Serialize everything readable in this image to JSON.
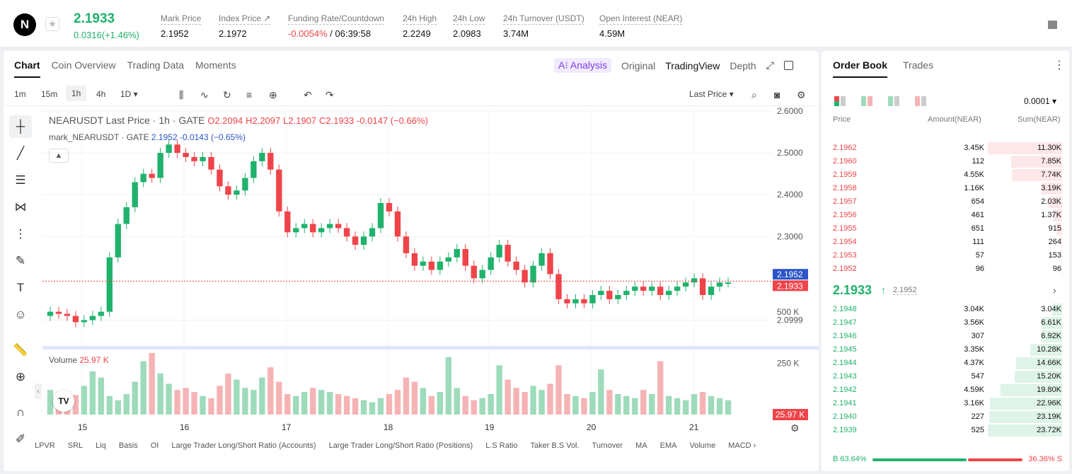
{
  "header": {
    "logo": "N",
    "price": "2.1933",
    "change": "0.0316(+1.46%)",
    "stats": [
      {
        "label": "Mark Price",
        "value": "2.1952"
      },
      {
        "label": "Index Price ↗",
        "value": "2.1972"
      },
      {
        "label": "Funding Rate/Countdown",
        "value_neg": "-0.0054%",
        "value": " / 06:39:58"
      },
      {
        "label": "24h High",
        "value": "2.2249"
      },
      {
        "label": "24h Low",
        "value": "2.0983"
      },
      {
        "label": "24h Turnover (USDT)",
        "value": "3.74M"
      },
      {
        "label": "Open Interest (NEAR)",
        "value": "4.59M"
      }
    ]
  },
  "chart_tabs": [
    "Chart",
    "Coin Overview",
    "Trading Data",
    "Moments"
  ],
  "view_tabs": {
    "analysis": "A⁝ Analysis",
    "original": "Original",
    "tradingview": "TradingView",
    "depth": "Depth"
  },
  "timeframes": [
    "1m",
    "15m",
    "1h",
    "4h",
    "1D ▾"
  ],
  "price_type": "Last Price ▾",
  "legend": {
    "symbol": "NEARUSDT Last Price · 1h · GATE",
    "o": "O2.2094",
    "h": "H2.2097",
    "l": "L2.1907",
    "c": "C2.1933",
    "chg": "-0.0147 (−0.66%)",
    "mark": "mark_NEARUSDT · GATE",
    "mark_vals": "2.1952  -0.0143 (−0.65%)",
    "volume_label": "Volume",
    "volume_val": "25.97 K"
  },
  "indicators": [
    "LPVR",
    "SRL",
    "Liq",
    "Basis",
    "OI",
    "Large Trader Long/Short Ratio (Accounts)",
    "Large Trader Long/Short Ratio (Positions)",
    "L.S Ratio",
    "Taker B.S Vol.",
    "Turnover",
    "MA",
    "EMA",
    "Volume",
    "MACD ›"
  ],
  "chart_data": {
    "type": "candlestick",
    "symbol": "NEARUSDT",
    "interval": "1h",
    "y_ticks": [
      "2.6000",
      "2.5000",
      "2.4000",
      "2.3000",
      "2.0999"
    ],
    "ylim": [
      2.05,
      2.6
    ],
    "x_ticks": [
      "15",
      "16",
      "17",
      "18",
      "19",
      "20",
      "21"
    ],
    "mark_price_label": "2.1952",
    "last_price_label": "2.1933",
    "volume_ticks": [
      "500 K",
      "250 K"
    ],
    "volume_last_label": "25.97 K",
    "close_path": [
      2.12,
      2.115,
      2.11,
      2.095,
      2.1,
      2.11,
      2.12,
      2.25,
      2.33,
      2.37,
      2.43,
      2.45,
      2.44,
      2.5,
      2.52,
      2.5,
      2.49,
      2.48,
      2.49,
      2.46,
      2.42,
      2.4,
      2.41,
      2.44,
      2.48,
      2.5,
      2.46,
      2.36,
      2.31,
      2.32,
      2.33,
      2.31,
      2.32,
      2.33,
      2.32,
      2.3,
      2.28,
      2.3,
      2.32,
      2.38,
      2.36,
      2.3,
      2.26,
      2.23,
      2.24,
      2.22,
      2.24,
      2.25,
      2.27,
      2.23,
      2.2,
      2.22,
      2.25,
      2.28,
      2.24,
      2.22,
      2.19,
      2.23,
      2.26,
      2.21,
      2.15,
      2.14,
      2.15,
      2.14,
      2.16,
      2.17,
      2.15,
      2.16,
      2.17,
      2.18,
      2.17,
      2.18,
      2.16,
      2.17,
      2.18,
      2.19,
      2.2,
      2.16,
      2.18,
      2.19,
      2.19
    ],
    "volumes": [
      120,
      60,
      80,
      95,
      140,
      210,
      180,
      90,
      70,
      100,
      160,
      260,
      300,
      200,
      150,
      120,
      130,
      110,
      90,
      80,
      140,
      200,
      170,
      130,
      120,
      180,
      230,
      160,
      100,
      90,
      110,
      130,
      120,
      110,
      100,
      90,
      80,
      70,
      60,
      80,
      100,
      120,
      180,
      160,
      130,
      90,
      110,
      280,
      130,
      90,
      70,
      80,
      100,
      240,
      170,
      130,
      110,
      140,
      120,
      150,
      240,
      100,
      90,
      80,
      110,
      220,
      120,
      100,
      90,
      80,
      120,
      100,
      260,
      90,
      80,
      70,
      100,
      110,
      90,
      80,
      70
    ]
  },
  "orderbook": {
    "tabs": [
      "Order Book",
      "Trades"
    ],
    "precision": "0.0001 ▾",
    "headers": {
      "price": "Price",
      "amount": "Amount(NEAR)",
      "sum": "Sum(NEAR)"
    },
    "asks": [
      {
        "price": "2.1962",
        "amount": "3.45K",
        "sum": "11.30K",
        "depth": 1.0
      },
      {
        "price": "2.1960",
        "amount": "112",
        "sum": "7.85K",
        "depth": 0.69
      },
      {
        "price": "2.1959",
        "amount": "4.55K",
        "sum": "7.74K",
        "depth": 0.68
      },
      {
        "price": "2.1958",
        "amount": "1.16K",
        "sum": "3.19K",
        "depth": 0.28
      },
      {
        "price": "2.1957",
        "amount": "654",
        "sum": "2.03K",
        "depth": 0.18
      },
      {
        "price": "2.1956",
        "amount": "461",
        "sum": "1.37K",
        "depth": 0.12
      },
      {
        "price": "2.1955",
        "amount": "651",
        "sum": "915",
        "depth": 0.08
      },
      {
        "price": "2.1954",
        "amount": "111",
        "sum": "264",
        "depth": 0.023
      },
      {
        "price": "2.1953",
        "amount": "57",
        "sum": "153",
        "depth": 0.014
      },
      {
        "price": "2.1952",
        "amount": "96",
        "sum": "96",
        "depth": 0.009
      }
    ],
    "mid": {
      "price": "2.1933",
      "arrow": "↑",
      "mark": "2.1952",
      "chevron": "›"
    },
    "bids": [
      {
        "price": "2.1948",
        "amount": "3.04K",
        "sum": "3.04K",
        "depth": 0.13
      },
      {
        "price": "2.1947",
        "amount": "3.56K",
        "sum": "6.61K",
        "depth": 0.28
      },
      {
        "price": "2.1946",
        "amount": "307",
        "sum": "6.92K",
        "depth": 0.29
      },
      {
        "price": "2.1945",
        "amount": "3.35K",
        "sum": "10.28K",
        "depth": 0.43
      },
      {
        "price": "2.1944",
        "amount": "4.37K",
        "sum": "14.66K",
        "depth": 0.62
      },
      {
        "price": "2.1943",
        "amount": "547",
        "sum": "15.20K",
        "depth": 0.64
      },
      {
        "price": "2.1942",
        "amount": "4.59K",
        "sum": "19.80K",
        "depth": 0.83
      },
      {
        "price": "2.1941",
        "amount": "3.16K",
        "sum": "22.96K",
        "depth": 0.97
      },
      {
        "price": "2.1940",
        "amount": "227",
        "sum": "23.19K",
        "depth": 0.98
      },
      {
        "price": "2.1939",
        "amount": "525",
        "sum": "23.72K",
        "depth": 1.0
      }
    ],
    "buy_ratio": "B 63.64%",
    "sell_ratio": "36.36% S",
    "buy_pct": 63.64
  },
  "colors": {
    "up": "#20b26c",
    "down": "#ef454a",
    "mark": "#2b55c8"
  }
}
